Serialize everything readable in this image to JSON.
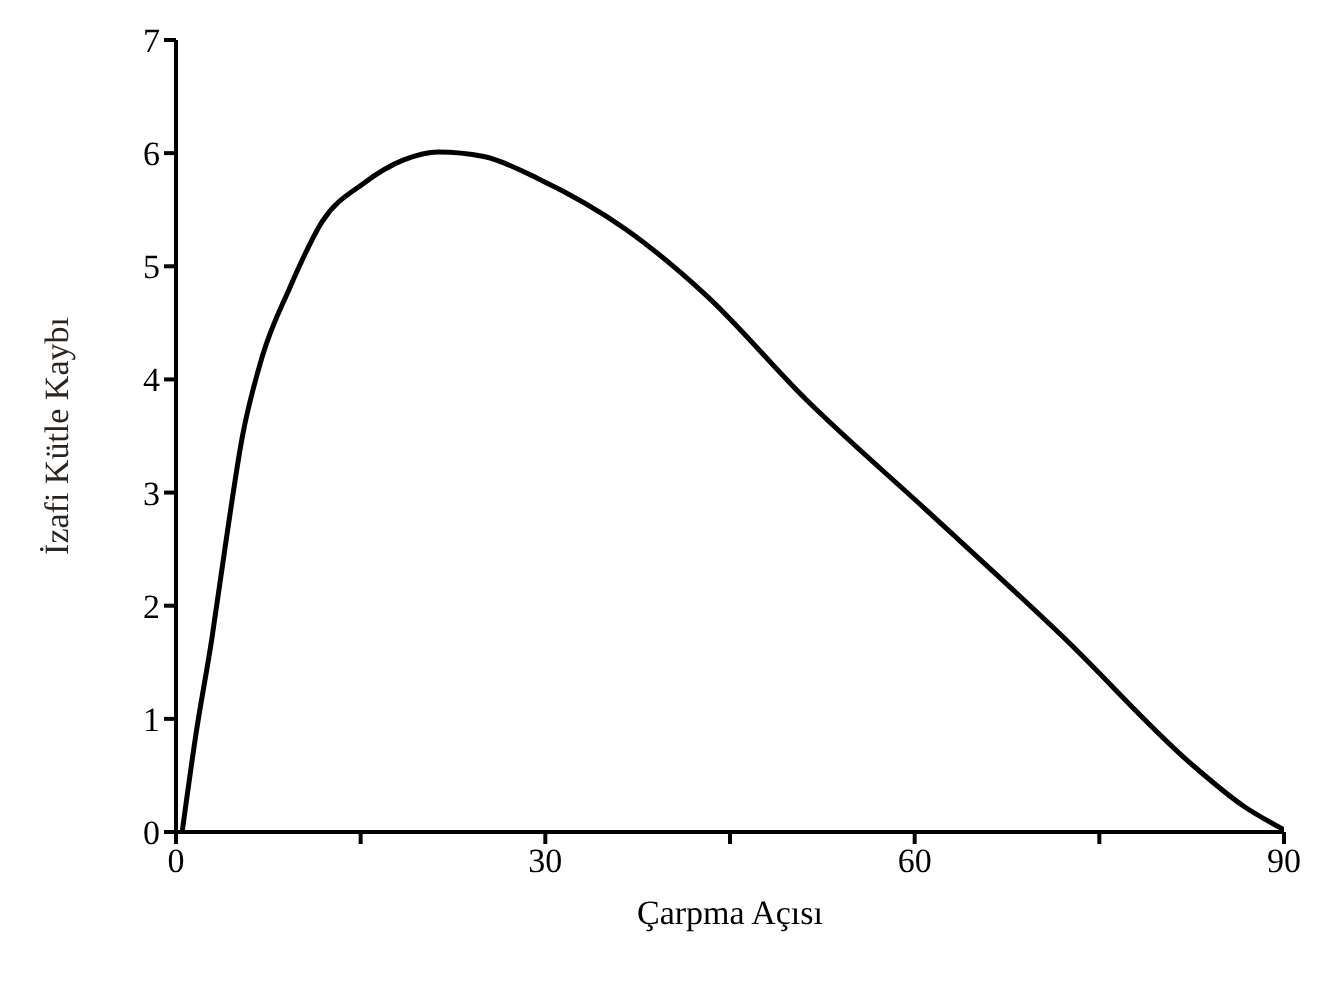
{
  "chart_data": {
    "type": "line",
    "xlabel": "Çarpma Açısı",
    "ylabel": "İzafi Kütle Kaybı",
    "x": [
      0.5,
      1.6,
      2.9,
      4.1,
      5.4,
      7.0,
      9.2,
      11.9,
      15.2,
      18.5,
      21.3,
      25.0,
      29.5,
      36.5,
      43.0,
      51.2,
      61.0,
      72.0,
      82.8,
      86.7,
      90
    ],
    "series": [
      {
        "color": "#000000",
        "values": [
          0,
          0.85,
          1.7,
          2.6,
          3.5,
          4.2,
          4.8,
          5.4,
          5.73,
          5.94,
          6.01,
          5.97,
          5.77,
          5.33,
          4.75,
          3.82,
          2.84,
          1.73,
          0.57,
          0.23,
          0.02
        ]
      }
    ],
    "xlim": [
      0,
      90
    ],
    "xticks": [
      0,
      {
        "value": 15,
        "label": null
      },
      30,
      {
        "value": 45,
        "label": null
      },
      60,
      {
        "value": 75,
        "label": null
      },
      90
    ],
    "ylim": [
      0,
      7
    ],
    "yticks": [
      0,
      1,
      2,
      3,
      4,
      5,
      6,
      7
    ],
    "grid": false,
    "marker": "none",
    "line_style": "solid"
  }
}
